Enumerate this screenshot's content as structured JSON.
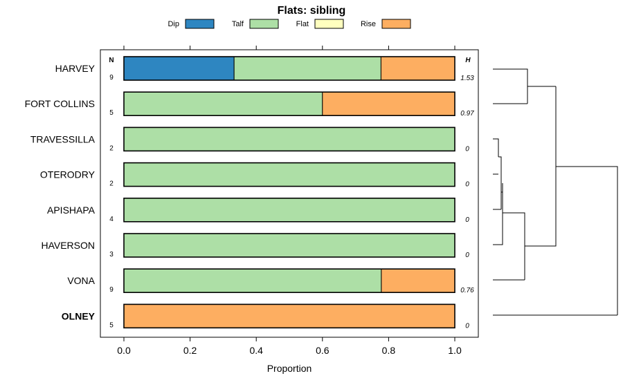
{
  "chart_data": {
    "type": "bar",
    "orientation": "horizontal",
    "stacked": true,
    "title": "Flats: sibling",
    "xlabel": "Proportion",
    "ylabel": "",
    "xlim": [
      0,
      1
    ],
    "xticks": [
      "0.0",
      "0.2",
      "0.4",
      "0.6",
      "0.8",
      "1.0"
    ],
    "xtick_values": [
      0,
      0.2,
      0.4,
      0.6,
      0.8,
      1.0
    ],
    "legend": [
      {
        "name": "Dip",
        "color": "#2e86c1"
      },
      {
        "name": "Talf",
        "color": "#addfa6"
      },
      {
        "name": "Flat",
        "color": "#ffffbf"
      },
      {
        "name": "Rise",
        "color": "#fdae61"
      }
    ],
    "n_header": "N",
    "h_header": "H",
    "categories": [
      "HARVEY",
      "FORT COLLINS",
      "TRAVESSILLA",
      "OTERODRY",
      "APISHAPA",
      "HAVERSON",
      "VONA",
      "OLNEY"
    ],
    "bold_categories": [
      "OLNEY"
    ],
    "n": [
      "9",
      "5",
      "2",
      "2",
      "4",
      "3",
      "9",
      "5"
    ],
    "h": [
      "1.53",
      "0.97",
      "0",
      "0",
      "0",
      "0",
      "0.76",
      "0"
    ],
    "series": [
      {
        "name": "Dip",
        "values": [
          0.333,
          0,
          0,
          0,
          0,
          0,
          0,
          0
        ]
      },
      {
        "name": "Talf",
        "values": [
          0.444,
          0.6,
          1,
          1,
          1,
          1,
          0.778,
          0
        ]
      },
      {
        "name": "Flat",
        "values": [
          0,
          0,
          0,
          0,
          0,
          0,
          0,
          0
        ]
      },
      {
        "name": "Rise",
        "values": [
          0.223,
          0.4,
          0,
          0,
          0,
          0,
          0.222,
          1
        ]
      }
    ]
  }
}
